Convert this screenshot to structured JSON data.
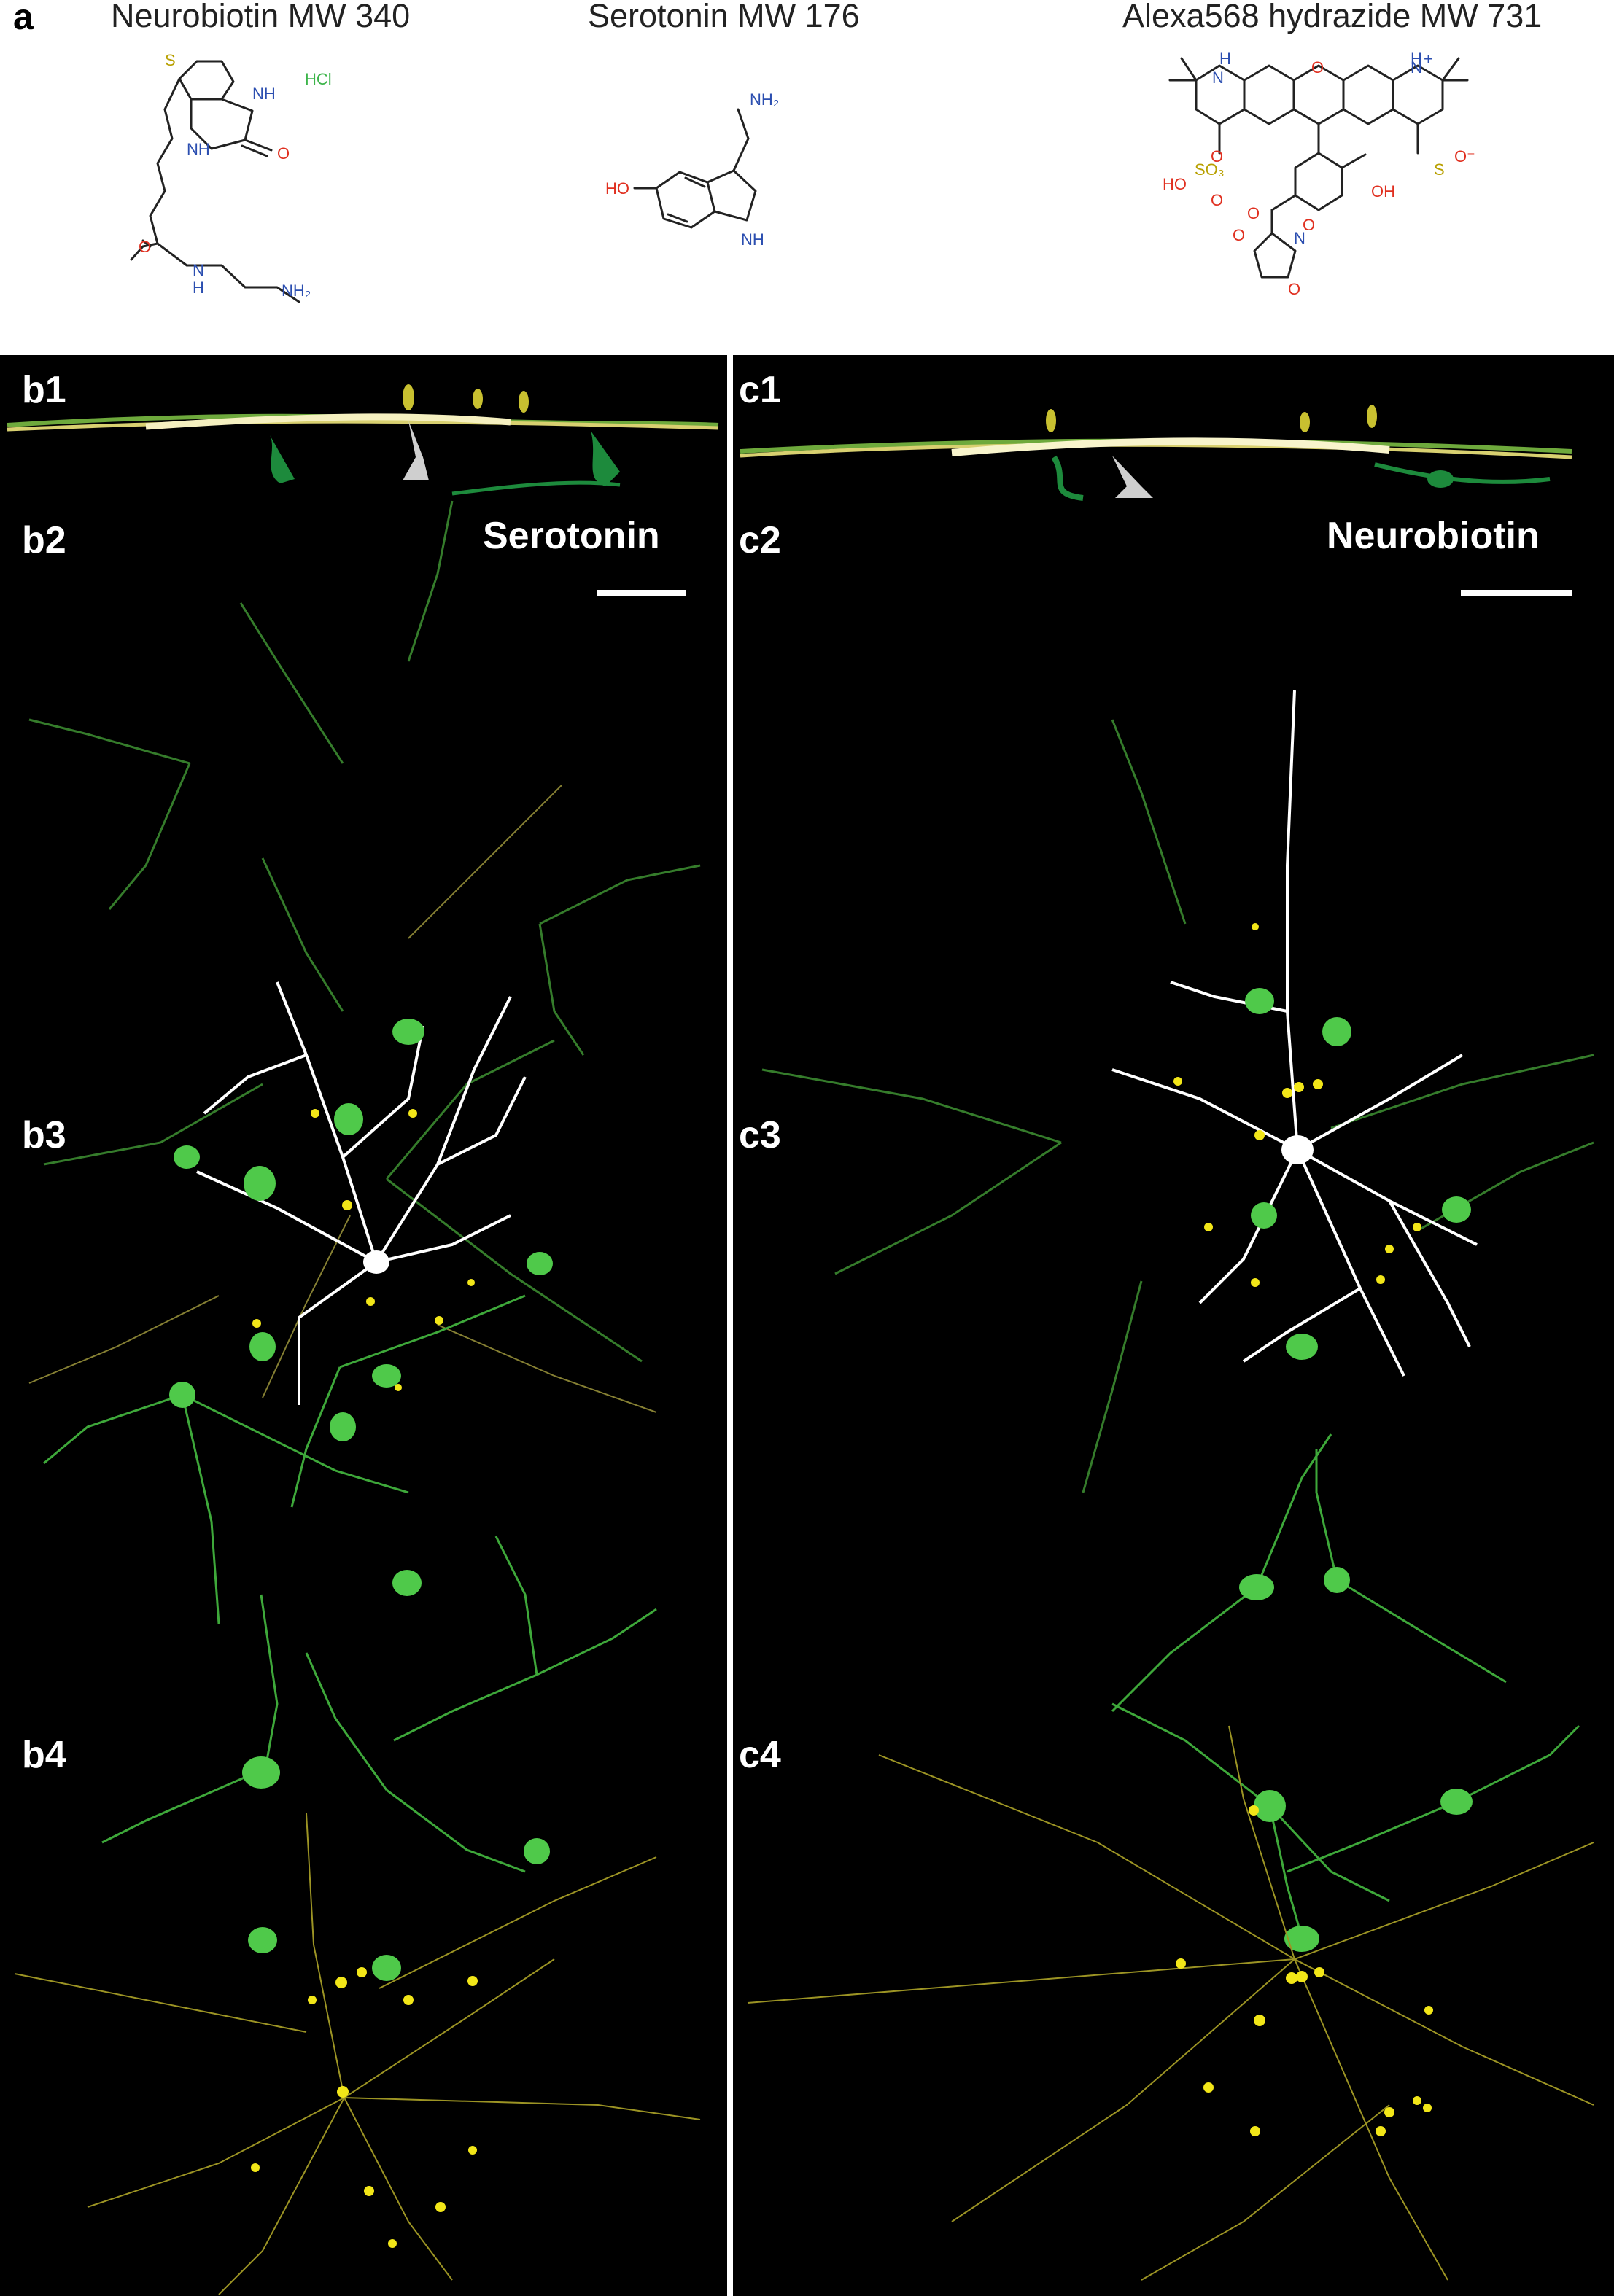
{
  "panel_a": {
    "letter": "a",
    "compounds": [
      {
        "name": "Neurobiotin MW 340"
      },
      {
        "name": "Serotonin MW 176"
      },
      {
        "name": "Alexa568 hydrazide MW 731"
      }
    ],
    "neurobiotin_atoms": {
      "s": "S",
      "nh1": "NH",
      "nh2": "NH",
      "o": "O",
      "hcl": "HCl",
      "o2": "O",
      "nh3": "N",
      "nh3h": "H",
      "nh2_end": "NH₂"
    },
    "serotonin_atoms": {
      "nh2": "NH₂",
      "ho": "HO",
      "nh": "NH"
    },
    "alexa_atoms": {
      "h1": "H",
      "n1": "N",
      "o": "O",
      "n2": "N",
      "plus": "+",
      "h2": "H",
      "so3_left": "SO₃",
      "ho_left": "HO",
      "o_left1": "O",
      "o_left2": "O",
      "o_right": "O⁻",
      "so_right": "S",
      "oh": "OH",
      "o_carb": "O",
      "n_succ": "N",
      "o_s1": "O",
      "o_s2": "O",
      "o_link": "O"
    }
  },
  "panel_b": {
    "labels": {
      "b1": "b1",
      "b2": "b2",
      "b3": "b3",
      "b4": "b4"
    },
    "tracer": "Serotonin"
  },
  "panel_c": {
    "labels": {
      "c1": "c1",
      "c2": "c2",
      "c3": "c3",
      "c4": "c4"
    },
    "tracer": "Neurobiotin"
  },
  "colors": {
    "background": "#000000",
    "injected_cell": "#ffffff",
    "coupled_cells_green": "#4fc94a",
    "coupled_cells_yellow": "#e8e020"
  }
}
